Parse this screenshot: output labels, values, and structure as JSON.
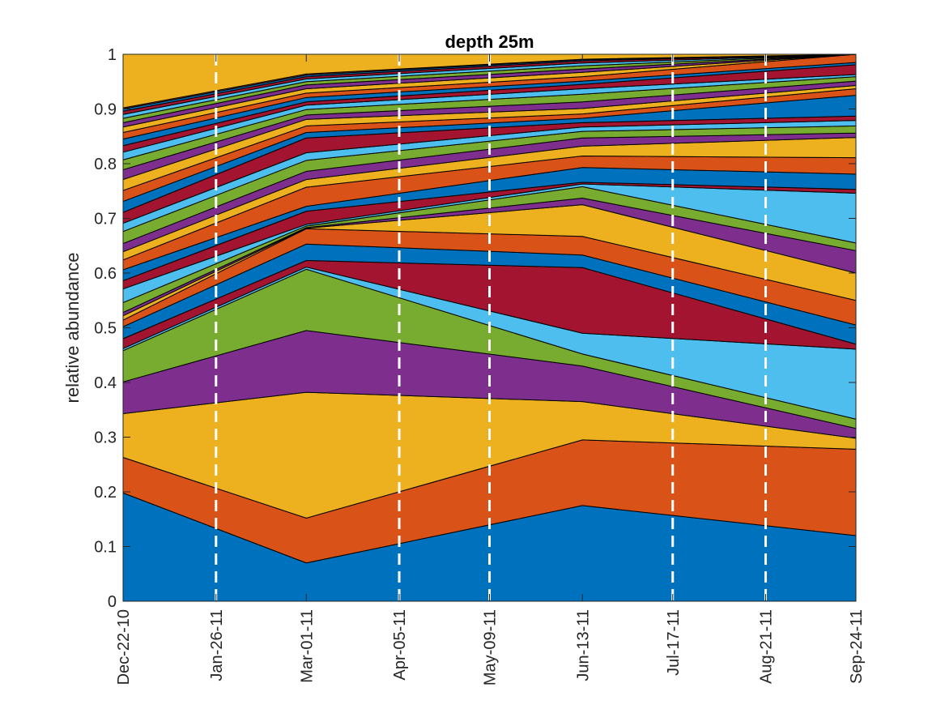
{
  "chart_data": {
    "type": "area",
    "stacked": true,
    "title": "depth 25m",
    "xlabel": "",
    "ylabel": "relative abundance",
    "x_dates": [
      "2010-12-22",
      "2011-03-01",
      "2011-06-13",
      "2011-09-24"
    ],
    "x_tick_labels": [
      "Dec-22-10",
      "Jan-26-11",
      "Mar-01-11",
      "Apr-05-11",
      "May-09-11",
      "Jun-13-11",
      "Jul-17-11",
      "Aug-21-11",
      "Sep-24-11"
    ],
    "x_tick_dates": [
      "2010-12-22",
      "2011-01-26",
      "2011-03-01",
      "2011-04-05",
      "2011-05-09",
      "2011-06-13",
      "2011-07-17",
      "2011-08-21",
      "2011-09-24"
    ],
    "dashed_vlines_dates": [
      "2011-01-26",
      "2011-04-05",
      "2011-05-09",
      "2011-07-17",
      "2011-08-21"
    ],
    "ylim": [
      0,
      1
    ],
    "y_ticks": [
      0,
      0.1,
      0.2,
      0.3,
      0.4,
      0.5,
      0.6,
      0.7,
      0.8,
      0.9,
      1
    ],
    "y_tick_labels": [
      "0",
      "0.1",
      "0.2",
      "0.3",
      "0.4",
      "0.5",
      "0.6",
      "0.7",
      "0.8",
      "0.9",
      "1"
    ],
    "grid": false,
    "vline_color": "#ffffff",
    "palette": [
      "#0072BD",
      "#D95319",
      "#EDB120",
      "#7E2F8E",
      "#77AC30",
      "#4DBEEE",
      "#A2142F"
    ],
    "series_values": [
      [
        0.198,
        0.07,
        0.175,
        0.12
      ],
      [
        0.065,
        0.082,
        0.12,
        0.158
      ],
      [
        0.08,
        0.23,
        0.07,
        0.02
      ],
      [
        0.058,
        0.113,
        0.065,
        0.018
      ],
      [
        0.057,
        0.112,
        0.022,
        0.017
      ],
      [
        0.004,
        0.004,
        0.038,
        0.128
      ],
      [
        0.018,
        0.012,
        0.12,
        0.009
      ],
      [
        0.022,
        0.03,
        0.023,
        0.035
      ],
      [
        0.012,
        0.028,
        0.034,
        0.045
      ],
      [
        0.008,
        0.001,
        0.058,
        0.05
      ],
      [
        0.006,
        0.001,
        0.012,
        0.041
      ],
      [
        0.018,
        0.003,
        0.021,
        0.014
      ],
      [
        0.025,
        0.003,
        0.005,
        0.091
      ],
      [
        0.015,
        0.024,
        0.003,
        0.007
      ],
      [
        0.02,
        0.009,
        0.027,
        0.028
      ],
      [
        0.018,
        0.035,
        0.021,
        0.03
      ],
      [
        0.015,
        0.014,
        0.018,
        0.037
      ],
      [
        0.015,
        0.015,
        0.015,
        0.008
      ],
      [
        0.022,
        0.02,
        0.012,
        0.013
      ],
      [
        0.015,
        0.014,
        0.008,
        0.01
      ],
      [
        0.02,
        0.027,
        0.008,
        0.008
      ],
      [
        0.02,
        0.01,
        0.008,
        0.038
      ],
      [
        0.02,
        0.012,
        0.008,
        0.012
      ],
      [
        0.02,
        0.012,
        0.01,
        0.006
      ],
      [
        0.018,
        0.008,
        0.012,
        0.008
      ],
      [
        0.018,
        0.01,
        0.014,
        0.008
      ],
      [
        0.014,
        0.008,
        0.01,
        0.004
      ],
      [
        0.012,
        0.006,
        0.008,
        0.018
      ],
      [
        0.012,
        0.008,
        0.006,
        0.004
      ],
      [
        0.012,
        0.008,
        0.008,
        0.02
      ],
      [
        0.01,
        0.008,
        0.008,
        0.006
      ],
      [
        0.008,
        0.007,
        0.006,
        0.012
      ],
      [
        0.008,
        0.006,
        0.006,
        0.003
      ],
      [
        0.007,
        0.005,
        0.005,
        0.006
      ],
      [
        0.006,
        0.004,
        0.004,
        0.004
      ],
      [
        0.004,
        0.003,
        0.002,
        0.003
      ],
      [
        0.002,
        0.002,
        0.001,
        0.002
      ]
    ]
  }
}
